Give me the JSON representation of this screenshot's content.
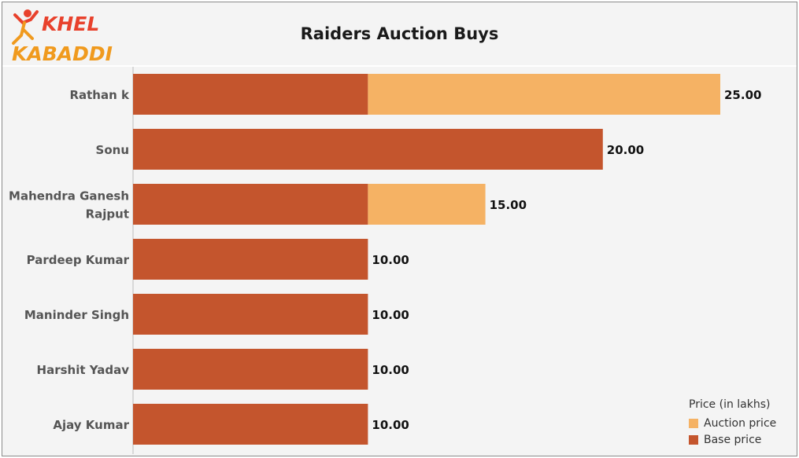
{
  "header": {
    "logo_text_line1": "KHEL",
    "logo_text_line2": "KABADDI",
    "title": "Raiders Auction Buys"
  },
  "colors": {
    "base": "#c4552d",
    "auction": "#f5b264",
    "frame_bg": "#f4f4f4"
  },
  "legend": {
    "title": "Price (in lakhs)",
    "items": [
      {
        "label": "Auction price",
        "color": "#f5b264"
      },
      {
        "label": "Base price",
        "color": "#c4552d"
      }
    ]
  },
  "chart_data": {
    "type": "bar",
    "orientation": "horizontal",
    "stacked": true,
    "title": "Raiders Auction Buys",
    "categories": [
      [
        "Rathan k"
      ],
      [
        "Sonu"
      ],
      [
        "Mahendra Ganesh",
        "Rajput"
      ],
      [
        "Pardeep Kumar"
      ],
      [
        "Maninder Singh"
      ],
      [
        "Harshit Yadav"
      ],
      [
        "Ajay Kumar"
      ]
    ],
    "series": [
      {
        "name": "Base price",
        "color": "#c4552d",
        "values": [
          10,
          20,
          10,
          10,
          10,
          10,
          10
        ]
      },
      {
        "name": "Auction price",
        "color": "#f5b264",
        "values": [
          15,
          0,
          5,
          0,
          0,
          0,
          0
        ]
      }
    ],
    "totals": [
      "25.00",
      "20.00",
      "15.00",
      "10.00",
      "10.00",
      "10.00",
      "10.00"
    ],
    "xlim": [
      0,
      25
    ],
    "legend_position": "bottom-right",
    "grid": false
  }
}
